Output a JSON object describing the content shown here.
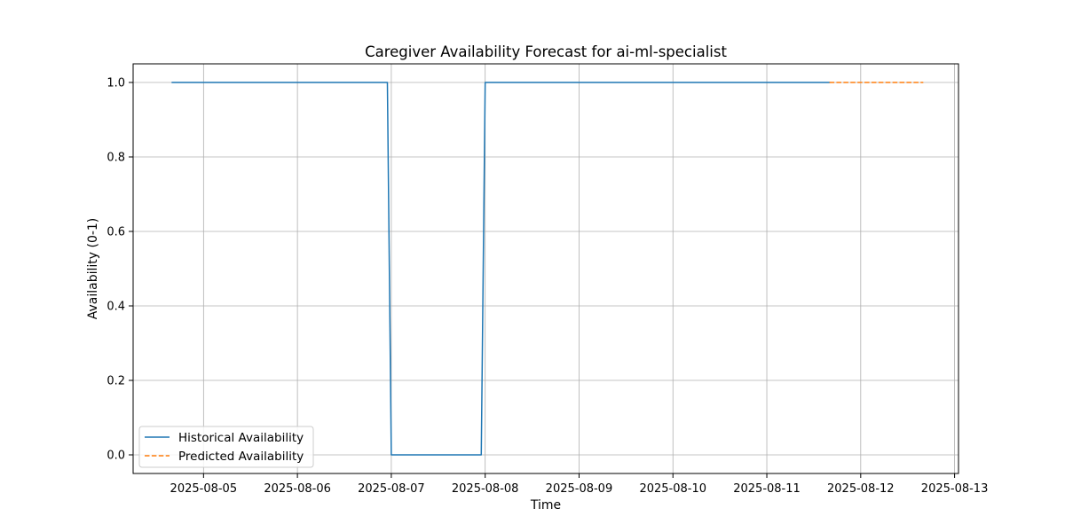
{
  "chart_data": {
    "type": "line",
    "title": "Caregiver Availability Forecast for ai-ml-specialist",
    "xlabel": "Time",
    "ylabel": "Availability (0-1)",
    "x_tick_labels": [
      "2025-08-05",
      "2025-08-06",
      "2025-08-07",
      "2025-08-08",
      "2025-08-09",
      "2025-08-10",
      "2025-08-11",
      "2025-08-12",
      "2025-08-13"
    ],
    "y_tick_labels": [
      "0.0",
      "0.2",
      "0.4",
      "0.6",
      "0.8",
      "1.0"
    ],
    "y_ticks": [
      0.0,
      0.2,
      0.4,
      0.6,
      0.8,
      1.0
    ],
    "xlim": [
      "2025-08-04 06:00",
      "2025-08-13 01:00"
    ],
    "ylim": [
      -0.05,
      1.05
    ],
    "grid": true,
    "legend_position": "lower-left",
    "series": [
      {
        "name": "Historical Availability",
        "color": "#1f77b4",
        "style": "solid",
        "x": [
          "2025-08-04 16:00",
          "2025-08-06 23:00",
          "2025-08-07 00:00",
          "2025-08-07 23:00",
          "2025-08-08 00:00",
          "2025-08-11 16:00"
        ],
        "values": [
          1.0,
          1.0,
          0.0,
          0.0,
          1.0,
          1.0
        ]
      },
      {
        "name": "Predicted Availability",
        "color": "#ff7f0e",
        "style": "dashed",
        "x": [
          "2025-08-11 16:00",
          "2025-08-12 16:00"
        ],
        "values": [
          1.0,
          1.0
        ]
      }
    ]
  }
}
